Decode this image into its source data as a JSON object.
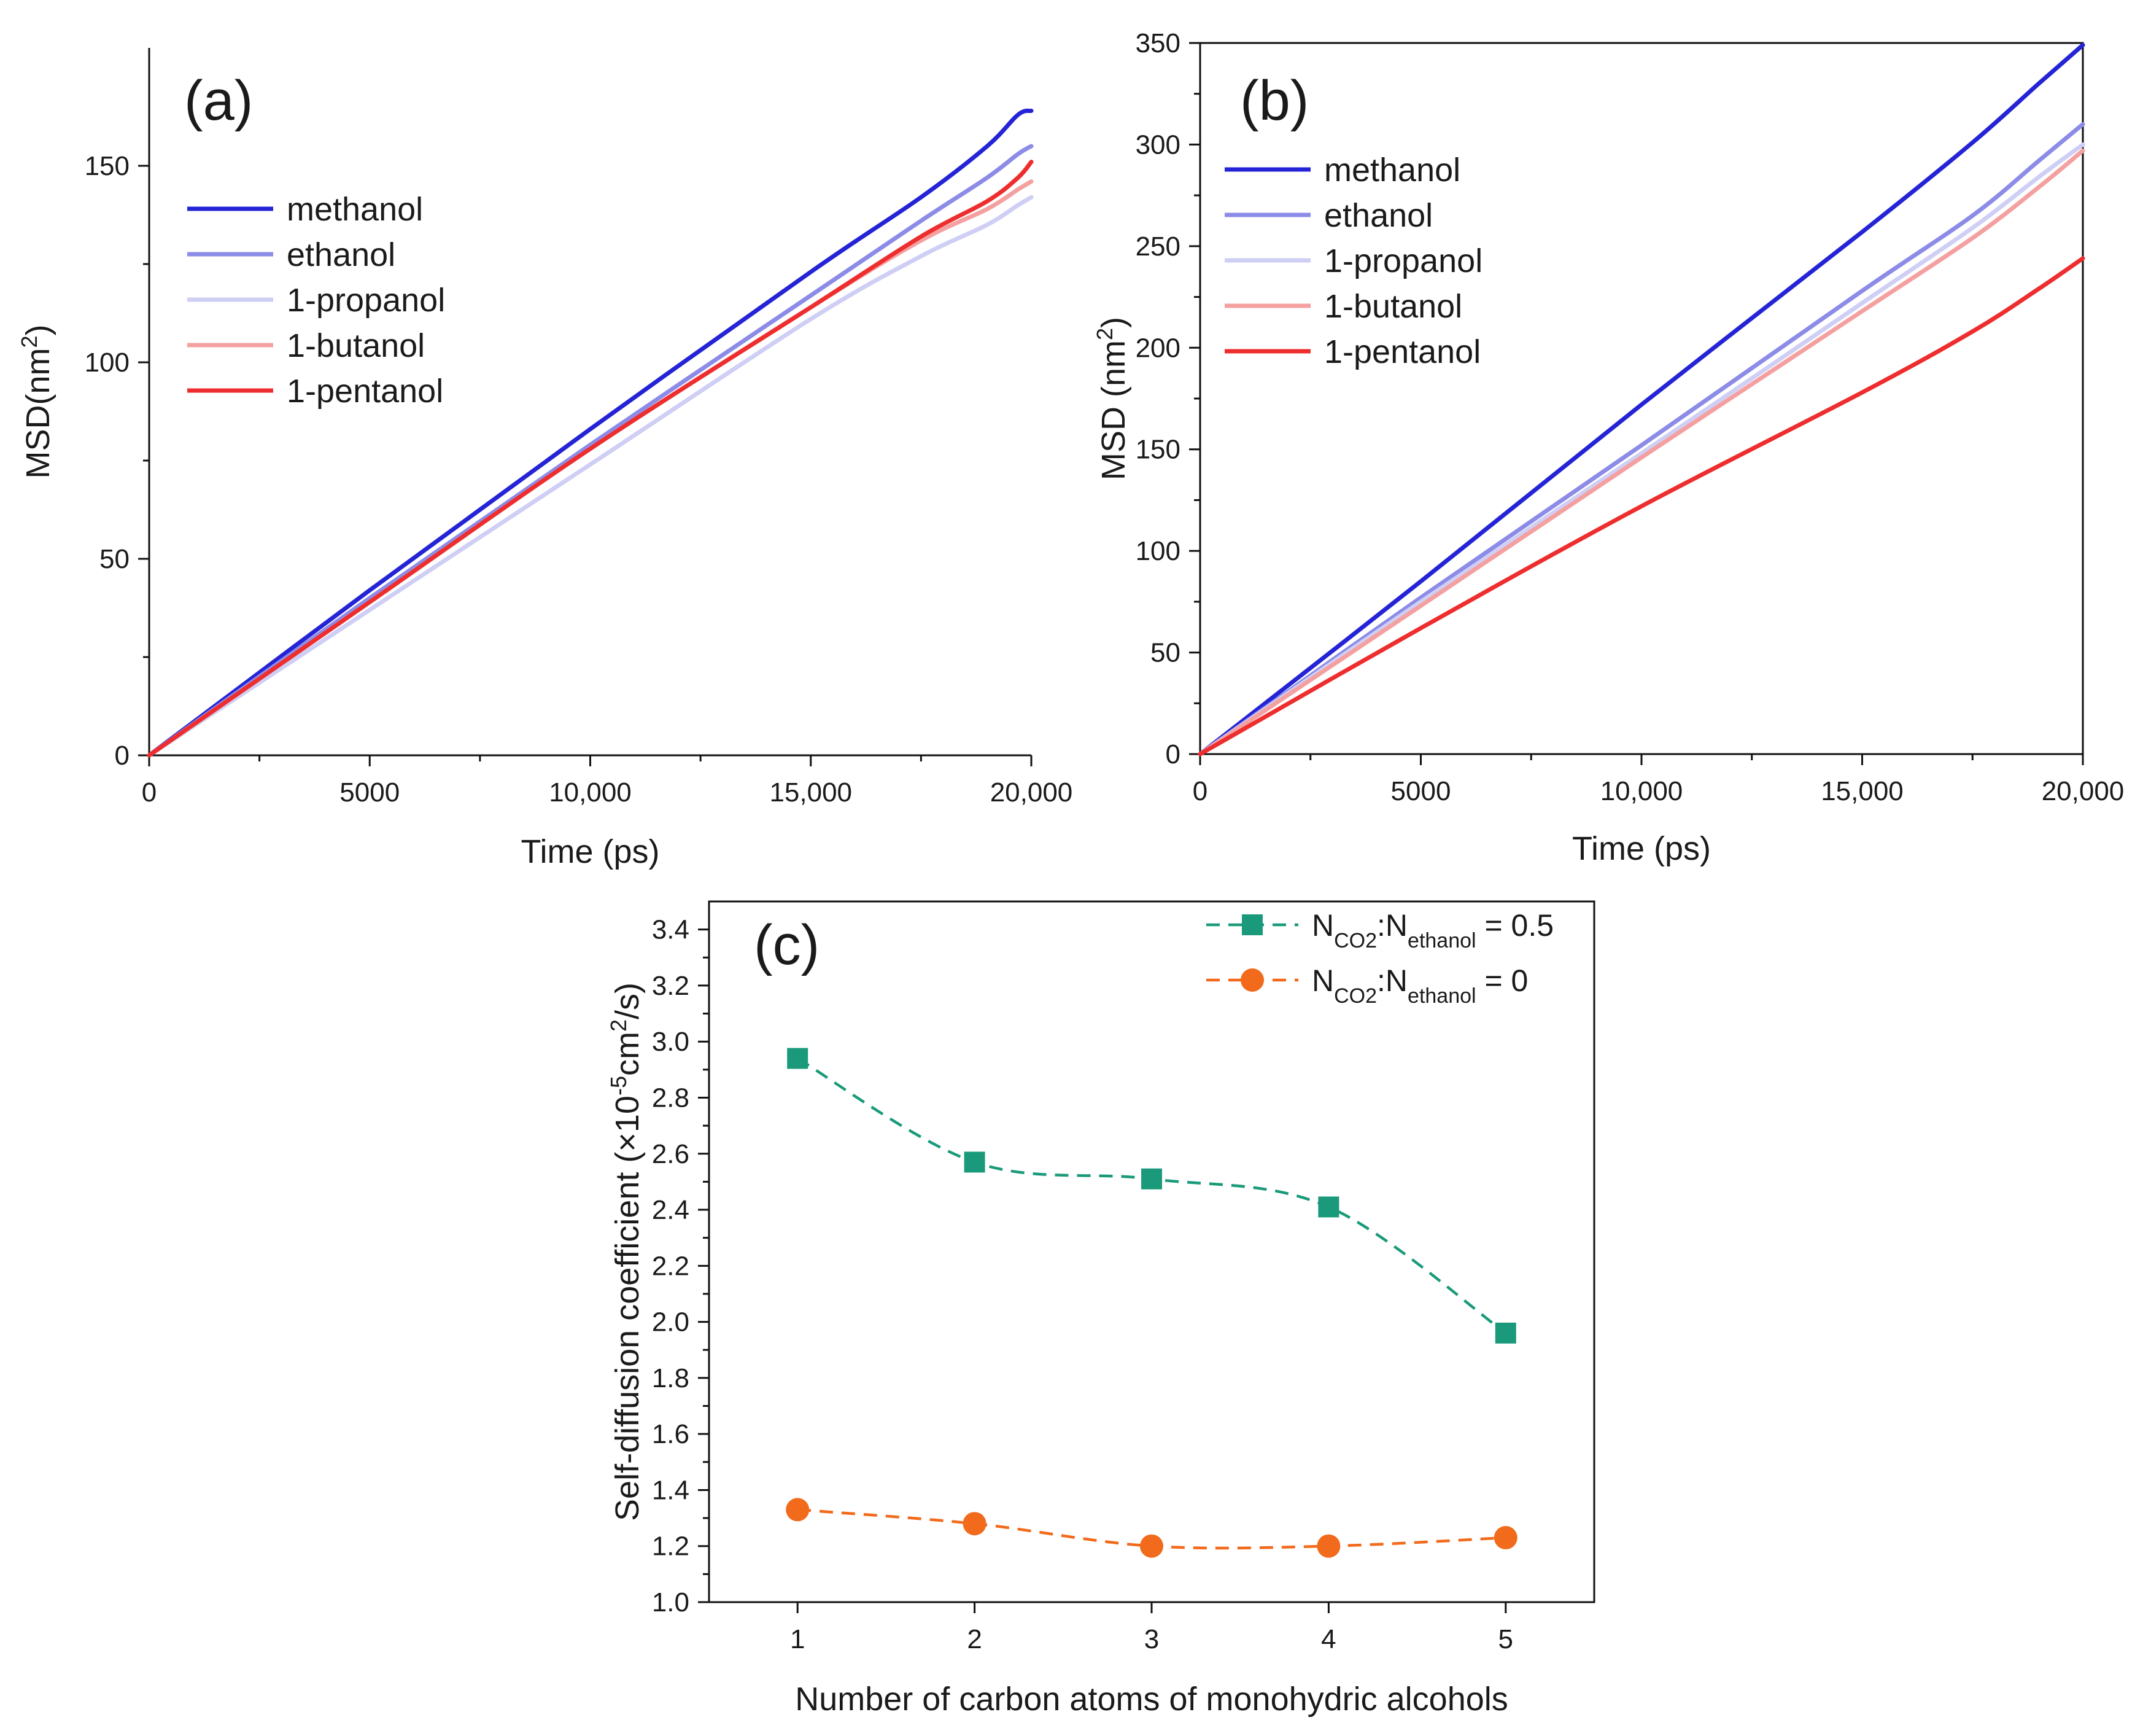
{
  "colors": {
    "methanol": "#2424d6",
    "ethanol": "#8c8ce8",
    "1-propanol": "#cfcff5",
    "1-butanol": "#f5a0a0",
    "1-pentanol": "#ee2e2e",
    "ratio_05": "#1a9a7a",
    "ratio_0": "#f26a1b"
  },
  "chart_data": [
    {
      "panel": "(a)",
      "type": "line",
      "xlabel": "Time (ps)",
      "ylabel": "MSD(nm²)",
      "ylabel_parts": [
        "MSD(nm",
        "2",
        ")"
      ],
      "xlim": [
        0,
        20000
      ],
      "ylim": [
        0,
        180
      ],
      "xticks": [
        0,
        5000,
        10000,
        15000,
        20000
      ],
      "xtick_labels": [
        "0",
        "5000",
        "10,000",
        "15,000",
        "20,000"
      ],
      "yticks": [
        0,
        50,
        100,
        150
      ],
      "ytick_labels": [
        "0",
        "50",
        "100",
        "150"
      ],
      "legend_position": "top-left",
      "series": [
        {
          "name": "methanol",
          "color_key": "methanol",
          "x": [
            0,
            5000,
            10000,
            15000,
            17500,
            19000,
            19700,
            20000
          ],
          "y": [
            0,
            42,
            83,
            123,
            142,
            155,
            163,
            164
          ]
        },
        {
          "name": "ethanol",
          "color_key": "ethanol",
          "x": [
            0,
            5000,
            10000,
            15000,
            17500,
            19000,
            19700,
            20000
          ],
          "y": [
            0,
            40,
            79,
            117,
            136,
            147,
            153,
            155
          ]
        },
        {
          "name": "1-propanol",
          "color_key": "1-propanol",
          "x": [
            0,
            5000,
            10000,
            15000,
            17500,
            19000,
            19700,
            20000
          ],
          "y": [
            0,
            37,
            74,
            111,
            127,
            135,
            140,
            142
          ]
        },
        {
          "name": "1-butanol",
          "color_key": "1-butanol",
          "x": [
            0,
            5000,
            10000,
            15000,
            17500,
            19000,
            19700,
            20000
          ],
          "y": [
            0,
            39,
            78,
            114,
            131,
            139,
            144,
            146
          ]
        },
        {
          "name": "1-pentanol",
          "color_key": "1-pentanol",
          "x": [
            0,
            5000,
            10000,
            15000,
            17500,
            19000,
            19700,
            20000
          ],
          "y": [
            0,
            39,
            78,
            114,
            132,
            141,
            147,
            151
          ]
        }
      ]
    },
    {
      "panel": "(b)",
      "type": "line",
      "xlabel": "Time (ps)",
      "ylabel": "MSD (nm²)",
      "ylabel_parts": [
        "MSD (nm",
        "2",
        ")"
      ],
      "xlim": [
        0,
        20000
      ],
      "ylim": [
        0,
        350
      ],
      "xticks": [
        0,
        5000,
        10000,
        15000,
        20000
      ],
      "xtick_labels": [
        "0",
        "5000",
        "10,000",
        "15,000",
        "20,000"
      ],
      "yticks": [
        0,
        50,
        100,
        150,
        200,
        250,
        300,
        350
      ],
      "ytick_labels": [
        "0",
        "50",
        "100",
        "150",
        "200",
        "250",
        "300",
        "350"
      ],
      "legend_position": "top-left",
      "series": [
        {
          "name": "methanol",
          "color_key": "methanol",
          "x": [
            0,
            5000,
            10000,
            15000,
            17500,
            19000,
            20000
          ],
          "y": [
            0,
            85,
            172,
            257,
            301,
            330,
            349
          ]
        },
        {
          "name": "ethanol",
          "color_key": "ethanol",
          "x": [
            0,
            5000,
            10000,
            15000,
            17500,
            19000,
            20000
          ],
          "y": [
            0,
            77,
            152,
            228,
            265,
            292,
            310
          ]
        },
        {
          "name": "1-propanol",
          "color_key": "1-propanol",
          "x": [
            0,
            5000,
            10000,
            15000,
            17500,
            19000,
            20000
          ],
          "y": [
            0,
            75,
            148,
            222,
            259,
            284,
            300
          ]
        },
        {
          "name": "1-butanol",
          "color_key": "1-butanol",
          "x": [
            0,
            5000,
            10000,
            15000,
            17500,
            19000,
            20000
          ],
          "y": [
            0,
            73,
            146,
            218,
            254,
            279,
            297
          ]
        },
        {
          "name": "1-pentanol",
          "color_key": "1-pentanol",
          "x": [
            0,
            5000,
            10000,
            15000,
            17500,
            19000,
            20000
          ],
          "y": [
            0,
            62,
            122,
            178,
            208,
            229,
            244
          ]
        }
      ]
    },
    {
      "panel": "(c)",
      "type": "scatter",
      "xlabel": "Number of carbon atoms of monohydric alcohols",
      "ylabel": "Self-diffusion coefficient (×10⁻⁵cm²/s)",
      "ylabel_parts": [
        "Self-diffusion coefficient (×10",
        "-5",
        "cm",
        "2",
        "/s)"
      ],
      "xlim": [
        0.5,
        5.5
      ],
      "ylim": [
        1.0,
        3.5
      ],
      "xticks": [
        1,
        2,
        3,
        4,
        5
      ],
      "xtick_labels": [
        "1",
        "2",
        "3",
        "4",
        "5"
      ],
      "yticks": [
        1.0,
        1.2,
        1.4,
        1.6,
        1.8,
        2.0,
        2.2,
        2.4,
        2.6,
        2.8,
        3.0,
        3.2,
        3.4
      ],
      "ytick_labels": [
        "1.0",
        "1.2",
        "1.4",
        "1.6",
        "1.8",
        "2.0",
        "2.2",
        "2.4",
        "2.6",
        "2.8",
        "3.0",
        "3.2",
        "3.4"
      ],
      "legend_position": "top-right",
      "series": [
        {
          "name": "NCO2:Nethanol = 0.5",
          "label_parts": [
            "N",
            "CO2",
            ":N",
            "ethanol",
            " = 0.5"
          ],
          "marker": "square",
          "color_key": "ratio_05",
          "x": [
            1,
            2,
            3,
            4,
            5
          ],
          "y": [
            2.94,
            2.57,
            2.51,
            2.41,
            1.96
          ]
        },
        {
          "name": "NCO2:Nethanol = 0",
          "label_parts": [
            "N",
            "CO2",
            ":N",
            "ethanol",
            " = 0"
          ],
          "marker": "circle",
          "color_key": "ratio_0",
          "x": [
            1,
            2,
            3,
            4,
            5
          ],
          "y": [
            1.33,
            1.28,
            1.2,
            1.2,
            1.23
          ]
        }
      ]
    }
  ]
}
